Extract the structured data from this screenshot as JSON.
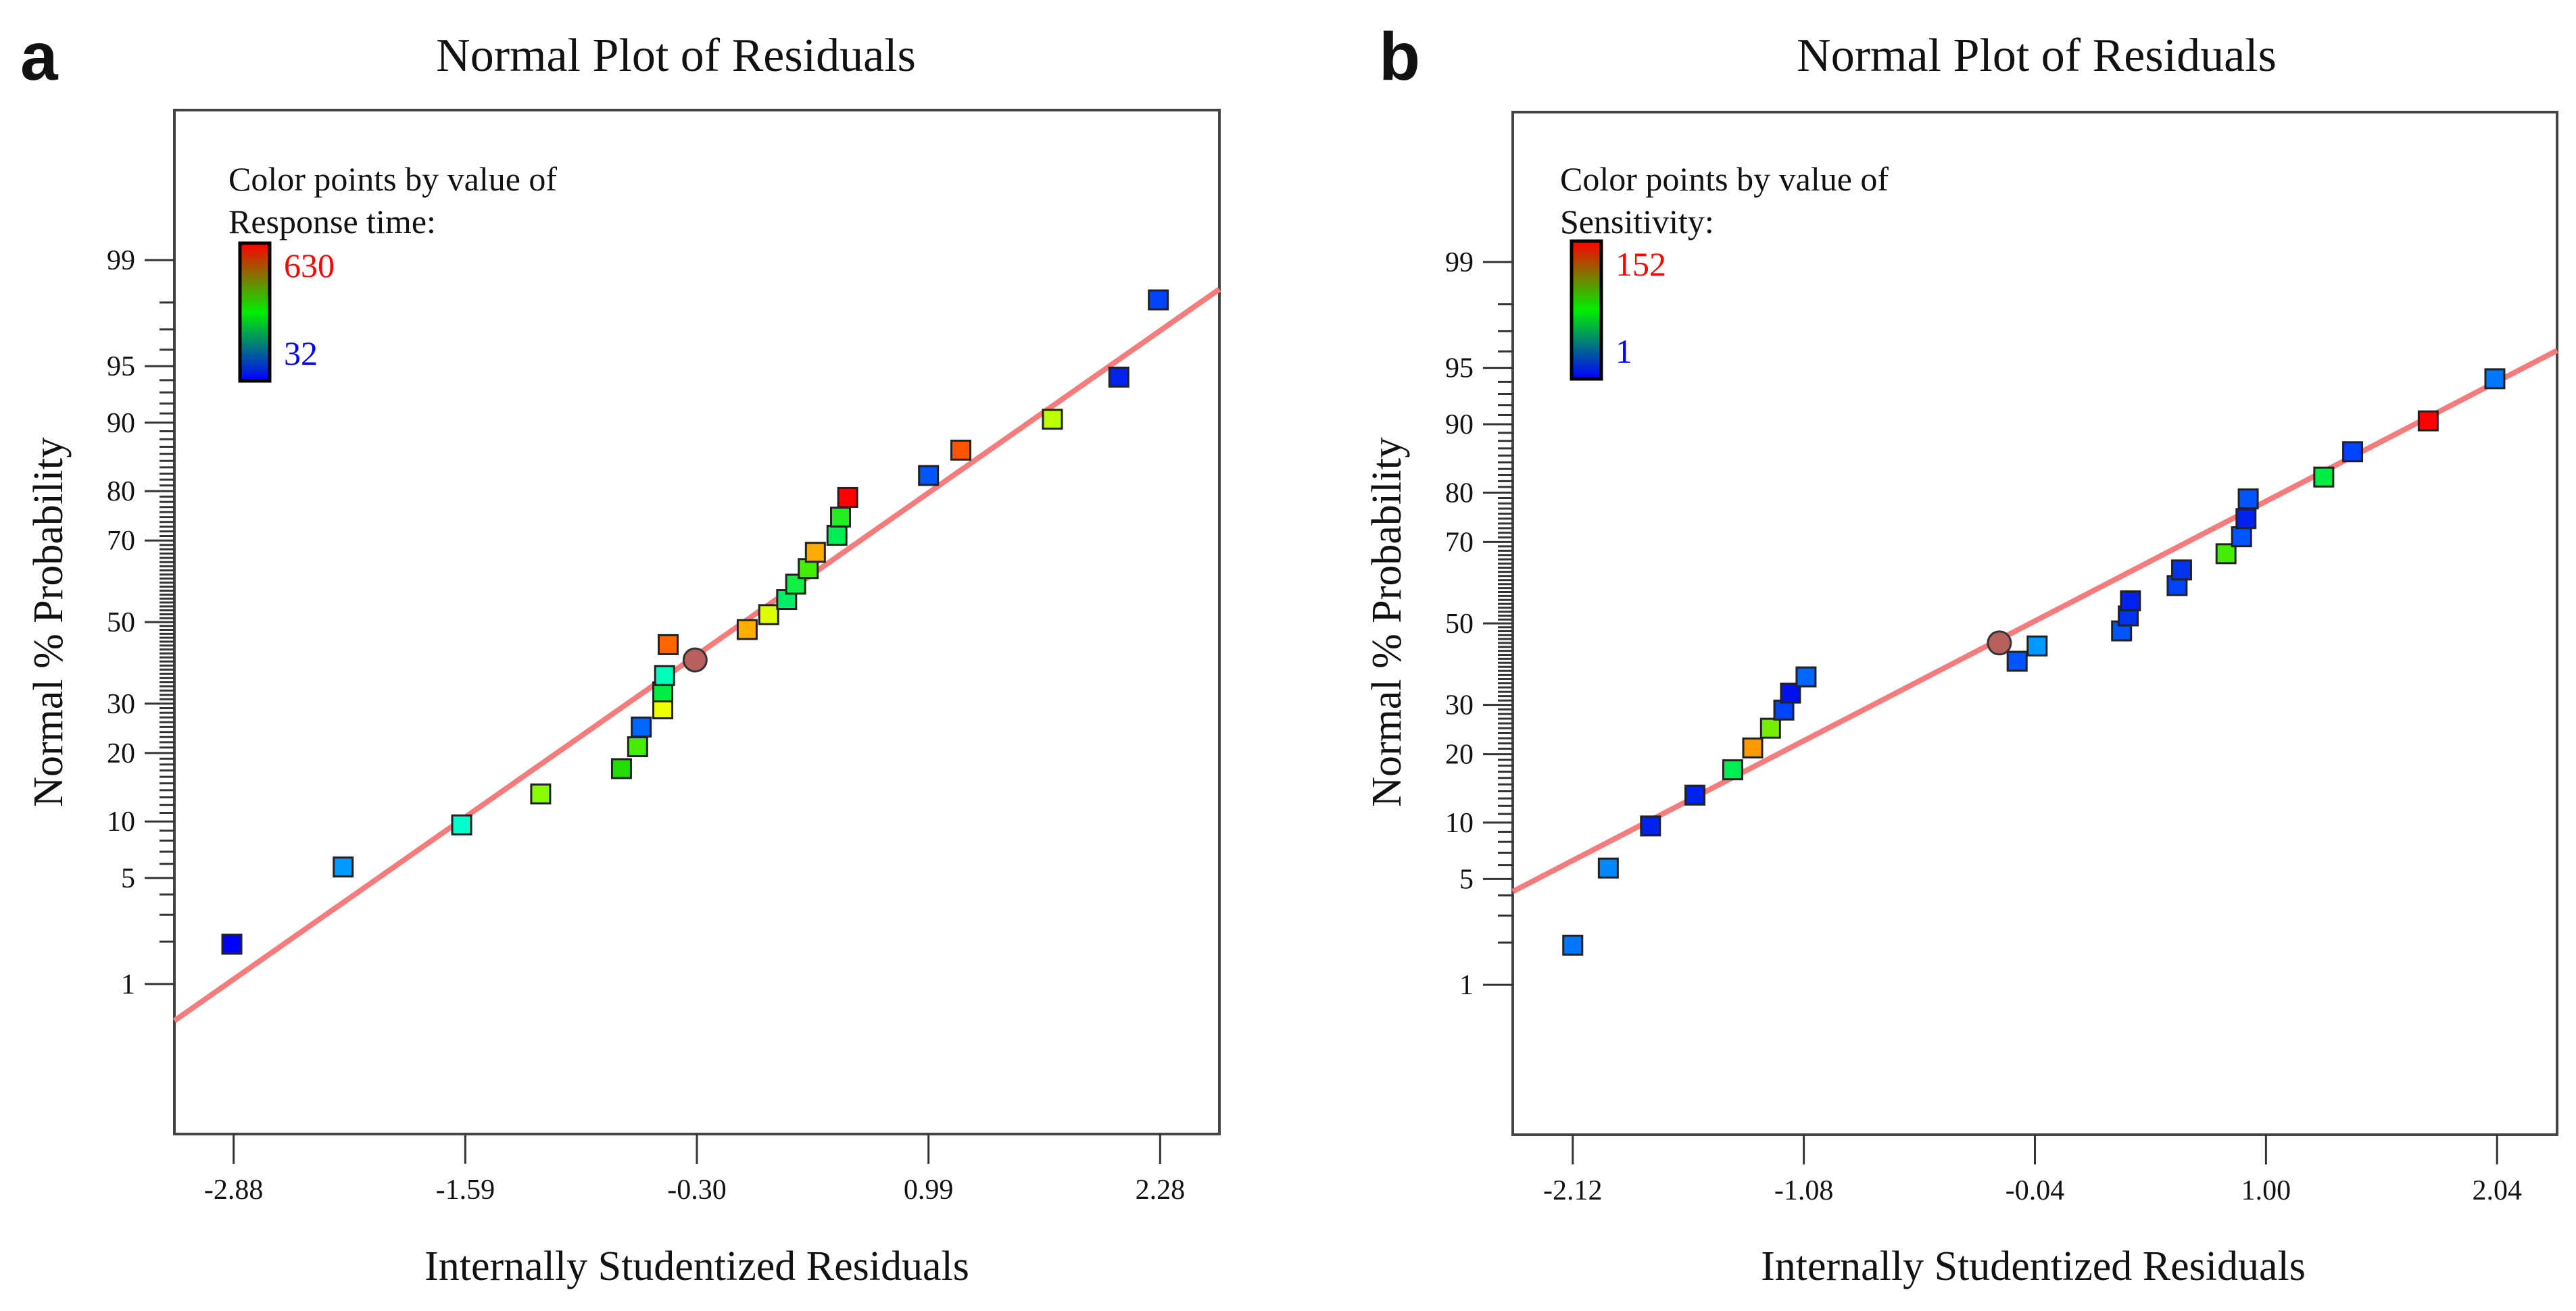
{
  "chart_data": [
    {
      "panel_label": "a",
      "type": "scatter",
      "title": "Normal Plot of Residuals",
      "xlabel": "Internally Studentized Residuals",
      "ylabel": "Normal % Probability",
      "x_ticks": [
        -2.88,
        -1.59,
        -0.3,
        0.99,
        2.28
      ],
      "x_tick_labels": [
        "-2.88",
        "-1.59",
        "-0.30",
        "0.99",
        "2.28"
      ],
      "xlim": [
        -3.21,
        2.61
      ],
      "y_scale": "normal-probability",
      "y_ticks": [
        1,
        5,
        10,
        20,
        30,
        50,
        70,
        80,
        90,
        95,
        99
      ],
      "y_tick_labels": [
        "1",
        "5",
        "10",
        "20",
        "30",
        "50",
        "70",
        "80",
        "90",
        "95",
        "99"
      ],
      "ylim": [
        0.05,
        99.95
      ],
      "grid": false,
      "legend": {
        "line1": "Color points by value of",
        "line2": "Response time:",
        "max_label": "630",
        "min_label": "32",
        "max_color": "#ff0000",
        "mid_color": "#00ee00",
        "min_color": "#0000ff",
        "placement": "top-left"
      },
      "fit_line": {
        "color": "#f47c7c",
        "x": [
          -3.21,
          2.61
        ],
        "y": [
          0.52,
          98.38
        ]
      },
      "points": [
        {
          "x": -2.89,
          "y": 1.92,
          "color": "#0000ff",
          "marker": "square"
        },
        {
          "x": -2.27,
          "y": 5.77,
          "color": "#0099ff",
          "marker": "square"
        },
        {
          "x": -1.61,
          "y": 9.62,
          "color": "#00ffcc",
          "marker": "square"
        },
        {
          "x": -1.17,
          "y": 13.46,
          "color": "#88ff00",
          "marker": "square"
        },
        {
          "x": -0.72,
          "y": 17.31,
          "color": "#22dd00",
          "marker": "square"
        },
        {
          "x": -0.63,
          "y": 21.15,
          "color": "#44ee00",
          "marker": "square"
        },
        {
          "x": -0.61,
          "y": 25.0,
          "color": "#0066ff",
          "marker": "square"
        },
        {
          "x": -0.49,
          "y": 28.85,
          "color": "#eeff00",
          "marker": "square"
        },
        {
          "x": -0.49,
          "y": 32.69,
          "color": "#00ee44",
          "marker": "square"
        },
        {
          "x": -0.48,
          "y": 36.54,
          "color": "#00ffbb",
          "marker": "square"
        },
        {
          "x": -0.31,
          "y": 40.38,
          "color": "#b86060",
          "marker": "circle"
        },
        {
          "x": -0.46,
          "y": 44.23,
          "color": "#ff6600",
          "marker": "square"
        },
        {
          "x": -0.02,
          "y": 48.08,
          "color": "#ffb000",
          "marker": "square"
        },
        {
          "x": 0.1,
          "y": 51.92,
          "color": "#ddff00",
          "marker": "square"
        },
        {
          "x": 0.2,
          "y": 55.77,
          "color": "#00ee66",
          "marker": "square"
        },
        {
          "x": 0.25,
          "y": 59.62,
          "color": "#11ee44",
          "marker": "square"
        },
        {
          "x": 0.32,
          "y": 63.46,
          "color": "#44ee00",
          "marker": "square"
        },
        {
          "x": 0.36,
          "y": 67.31,
          "color": "#ffaa00",
          "marker": "square"
        },
        {
          "x": 0.48,
          "y": 71.15,
          "color": "#00ee55",
          "marker": "square"
        },
        {
          "x": 0.5,
          "y": 75.0,
          "color": "#22ee22",
          "marker": "square"
        },
        {
          "x": 0.54,
          "y": 78.85,
          "color": "#ff0000",
          "marker": "square"
        },
        {
          "x": 0.99,
          "y": 82.69,
          "color": "#0055ff",
          "marker": "square"
        },
        {
          "x": 1.17,
          "y": 86.54,
          "color": "#ff5500",
          "marker": "square"
        },
        {
          "x": 1.68,
          "y": 90.38,
          "color": "#bbff00",
          "marker": "square"
        },
        {
          "x": 2.05,
          "y": 94.23,
          "color": "#0022ee",
          "marker": "square"
        },
        {
          "x": 2.27,
          "y": 98.08,
          "color": "#0044ff",
          "marker": "square"
        }
      ]
    },
    {
      "panel_label": "b",
      "type": "scatter",
      "title": "Normal Plot of Residuals",
      "xlabel": "Internally Studentized Residuals",
      "ylabel": "Normal % Probability",
      "x_ticks": [
        -2.12,
        -1.08,
        -0.04,
        1.0,
        2.04
      ],
      "x_tick_labels": [
        "-2.12",
        "-1.08",
        "-0.04",
        "1.00",
        "2.04"
      ],
      "xlim": [
        -2.39,
        2.31
      ],
      "y_scale": "normal-probability",
      "y_ticks": [
        1,
        5,
        10,
        20,
        30,
        50,
        70,
        80,
        90,
        95,
        99
      ],
      "y_tick_labels": [
        "1",
        "5",
        "10",
        "20",
        "30",
        "50",
        "70",
        "80",
        "90",
        "95",
        "99"
      ],
      "ylim": [
        0.05,
        99.95
      ],
      "grid": false,
      "legend": {
        "line1": "Color points by value of",
        "line2": "Sensitivity:",
        "max_label": "152",
        "min_label": "1",
        "max_color": "#ff0000",
        "mid_color": "#00ee00",
        "min_color": "#0000ff",
        "placement": "top-left"
      },
      "fit_line": {
        "color": "#f47c7c",
        "x": [
          -2.39,
          2.31
        ],
        "y": [
          4.22,
          96.05
        ]
      },
      "points": [
        {
          "x": -2.12,
          "y": 1.92,
          "color": "#0077ff",
          "marker": "square"
        },
        {
          "x": -1.96,
          "y": 5.77,
          "color": "#0088ff",
          "marker": "square"
        },
        {
          "x": -1.77,
          "y": 9.62,
          "color": "#0022ee",
          "marker": "square"
        },
        {
          "x": -1.57,
          "y": 13.46,
          "color": "#0022ee",
          "marker": "square"
        },
        {
          "x": -1.4,
          "y": 17.31,
          "color": "#00ee55",
          "marker": "square"
        },
        {
          "x": -1.31,
          "y": 21.15,
          "color": "#ff9900",
          "marker": "square"
        },
        {
          "x": -1.23,
          "y": 25.0,
          "color": "#77ee00",
          "marker": "square"
        },
        {
          "x": -1.17,
          "y": 28.85,
          "color": "#0044ff",
          "marker": "square"
        },
        {
          "x": -1.14,
          "y": 32.69,
          "color": "#0011ee",
          "marker": "square"
        },
        {
          "x": -1.07,
          "y": 36.54,
          "color": "#0066ff",
          "marker": "square"
        },
        {
          "x": -0.12,
          "y": 40.38,
          "color": "#0055ff",
          "marker": "square"
        },
        {
          "x": -0.03,
          "y": 44.23,
          "color": "#0099ff",
          "marker": "square"
        },
        {
          "x": -0.2,
          "y": 45.0,
          "color": "#b86060",
          "marker": "circle"
        },
        {
          "x": 0.35,
          "y": 48.08,
          "color": "#0055ff",
          "marker": "square"
        },
        {
          "x": 0.38,
          "y": 51.92,
          "color": "#0033ee",
          "marker": "square"
        },
        {
          "x": 0.39,
          "y": 55.77,
          "color": "#0022ee",
          "marker": "square"
        },
        {
          "x": 0.6,
          "y": 59.62,
          "color": "#0044ff",
          "marker": "square"
        },
        {
          "x": 0.62,
          "y": 63.46,
          "color": "#0033ee",
          "marker": "square"
        },
        {
          "x": 0.82,
          "y": 67.31,
          "color": "#44ee00",
          "marker": "square"
        },
        {
          "x": 0.89,
          "y": 71.15,
          "color": "#0055ff",
          "marker": "square"
        },
        {
          "x": 0.91,
          "y": 75.0,
          "color": "#0022ee",
          "marker": "square"
        },
        {
          "x": 0.92,
          "y": 78.85,
          "color": "#0055ff",
          "marker": "square"
        },
        {
          "x": 1.26,
          "y": 82.69,
          "color": "#00ee44",
          "marker": "square"
        },
        {
          "x": 1.39,
          "y": 86.54,
          "color": "#0044ff",
          "marker": "square"
        },
        {
          "x": 1.73,
          "y": 90.38,
          "color": "#ff0000",
          "marker": "square"
        },
        {
          "x": 2.03,
          "y": 94.23,
          "color": "#0077ff",
          "marker": "square"
        }
      ]
    }
  ]
}
